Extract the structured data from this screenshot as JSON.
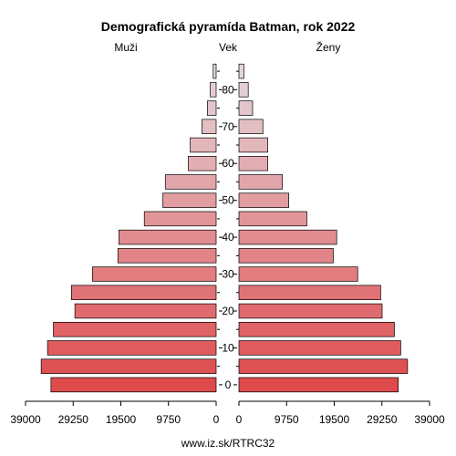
{
  "chart_data": {
    "type": "bar",
    "title": "Demografická pyramída Batman, rok 2022",
    "left_label": "Muži",
    "center_label": "Vek",
    "right_label": "Ženy",
    "source": "www.iz.sk/RTRC32",
    "age_groups": [
      "0-4",
      "5-9",
      "10-14",
      "15-19",
      "20-24",
      "25-29",
      "30-34",
      "35-39",
      "40-44",
      "45-49",
      "50-54",
      "55-59",
      "60-64",
      "65-69",
      "70-74",
      "75-79",
      "80-84",
      "85+"
    ],
    "age_ticks": [
      0,
      10,
      20,
      30,
      40,
      50,
      60,
      70,
      80
    ],
    "x_ticks_left": [
      "39000",
      "29250",
      "19500",
      "9750",
      "0"
    ],
    "x_ticks_right": [
      "0",
      "9750",
      "19500",
      "29250",
      "39000"
    ],
    "xlim": [
      0,
      39000
    ],
    "series": [
      {
        "name": "Muži",
        "values": [
          33800,
          35800,
          34500,
          33300,
          28900,
          29600,
          25300,
          20100,
          19900,
          14700,
          10900,
          10400,
          5700,
          5300,
          2900,
          1800,
          1200,
          600
        ]
      },
      {
        "name": "Ženy",
        "values": [
          32600,
          34500,
          33100,
          31800,
          29300,
          29000,
          24300,
          19300,
          20000,
          13900,
          10200,
          8900,
          5900,
          5900,
          4900,
          2800,
          1900,
          1000
        ]
      }
    ]
  }
}
